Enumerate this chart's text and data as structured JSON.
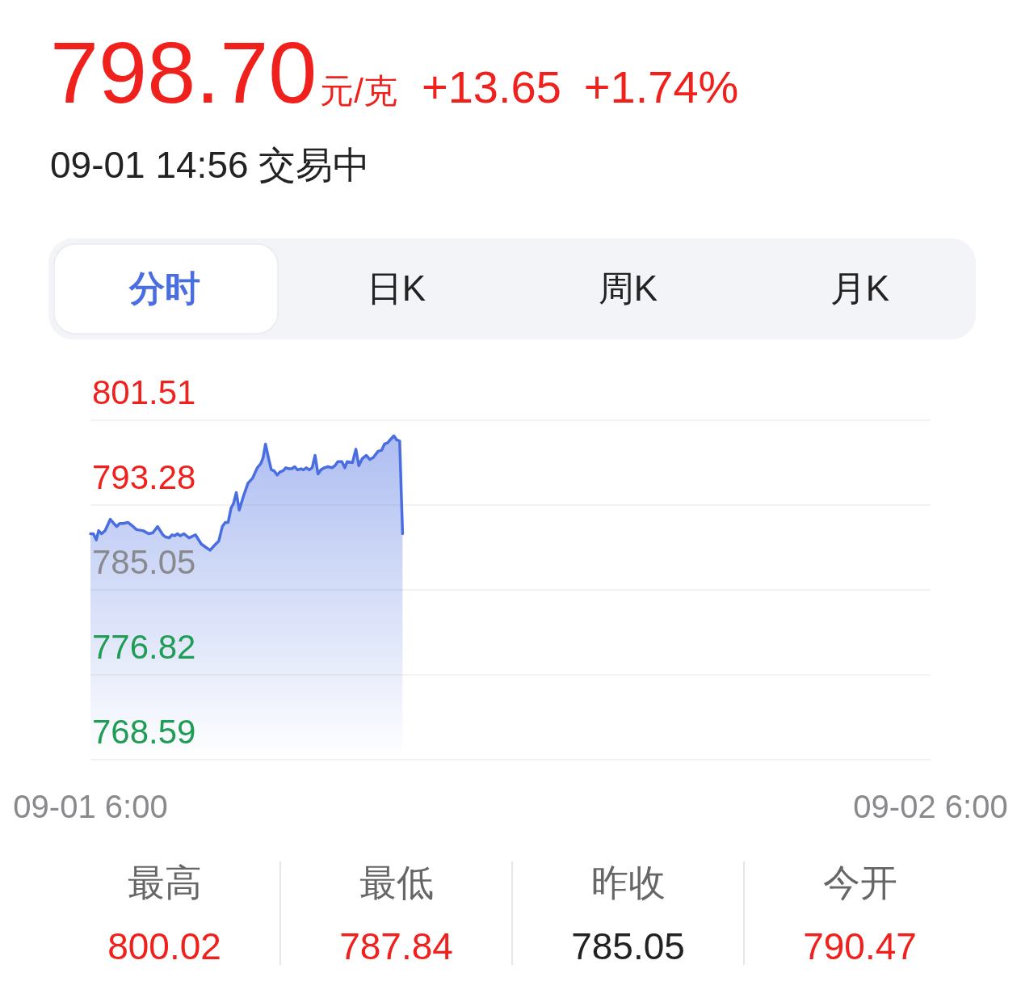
{
  "chart_data": {
    "type": "area",
    "title": "798.70",
    "subtitle": "09-01 14:56 交易中",
    "annotations": [
      "元/克",
      "+13.65",
      "+1.74%",
      "分时",
      "日K",
      "周K",
      "月K",
      "最高",
      "800.02",
      "最低",
      "787.84",
      "昨收",
      "785.05",
      "今开",
      "790.47"
    ],
    "x": [
      "--09-01T06:00",
      "--09-01T06:05",
      "--09-01T06:10",
      "--09-01T06:14",
      "--09-01T06:19",
      "--09-01T06:25",
      "--09-01T06:34",
      "--09-01T06:40",
      "--09-01T06:45",
      "--09-01T06:50",
      "--09-01T06:56",
      "--09-01T07:04",
      "--09-01T07:11",
      "--09-01T07:19",
      "--09-01T07:30",
      "--09-01T07:40",
      "--09-01T07:47",
      "--09-01T07:55",
      "--09-01T08:04",
      "--09-01T08:08",
      "--09-01T08:15",
      "--09-01T08:20",
      "--09-01T08:24",
      "--09-01T08:29",
      "--09-01T08:34",
      "--09-01T08:40",
      "--09-01T08:49",
      "--09-01T09:00",
      "--09-01T09:10",
      "--09-01T09:25",
      "--09-01T09:33",
      "--09-01T09:40",
      "--09-01T09:46",
      "--09-01T09:51",
      "--09-01T09:56",
      "--09-01T10:01",
      "--09-01T10:05",
      "--09-01T10:10",
      "--09-01T10:15",
      "--09-01T10:22",
      "--09-01T10:30",
      "--09-01T10:38",
      "--09-01T10:46",
      "--09-01T10:52",
      "--09-01T10:56",
      "--09-01T11:00",
      "--09-01T11:05",
      "--09-01T11:10",
      "--09-01T11:15",
      "--09-01T11:20",
      "--09-01T11:25",
      "--09-01T11:30",
      "--09-01T11:35",
      "--09-01T11:40",
      "--09-01T11:45",
      "--09-01T11:50",
      "--09-01T11:55",
      "--09-01T12:01",
      "--09-01T12:05",
      "--09-01T12:10",
      "--09-01T12:15",
      "--09-01T12:20",
      "--09-01T12:25",
      "--09-01T12:30",
      "--09-01T12:35",
      "--09-01T12:41",
      "--09-01T12:47",
      "--09-01T12:54",
      "--09-01T12:59",
      "--09-01T13:04",
      "--09-01T13:11",
      "--09-01T13:16",
      "--09-01T13:20",
      "--09-01T13:29",
      "--09-01T13:35",
      "--09-01T13:40",
      "--09-01T13:46",
      "--09-01T13:53",
      "--09-01T13:59",
      "--09-01T14:05",
      "--09-01T14:13",
      "--09-01T14:19",
      "--09-01T14:24",
      "--09-01T14:29",
      "--09-01T14:40",
      "--09-01T14:45",
      "--09-01T14:50",
      "--09-01T14:55"
    ],
    "series": [
      {
        "color": "#4a6ee0",
        "values": [
          790.5,
          790.5,
          789.9,
          790.8,
          790.5,
          790.8,
          791.9,
          791.5,
          791.2,
          791.5,
          791.5,
          791.6,
          791.3,
          790.9,
          790.8,
          790.5,
          790.6,
          791.2,
          790.4,
          790.2,
          790.1,
          790.4,
          790.3,
          790.5,
          790.3,
          790.5,
          790.1,
          790.4,
          789.5,
          788.9,
          789.4,
          789.8,
          791.2,
          791.6,
          791.6,
          793.0,
          793.4,
          794.5,
          792.8,
          794.1,
          795.4,
          795.9,
          796.9,
          797.3,
          797.9,
          799.2,
          797.9,
          796.7,
          796.6,
          796.2,
          796.5,
          796.6,
          796.9,
          796.8,
          796.8,
          797.0,
          796.7,
          796.8,
          796.7,
          796.9,
          796.7,
          796.9,
          798.1,
          796.3,
          796.7,
          796.9,
          797.0,
          796.9,
          797.1,
          797.5,
          797.5,
          796.9,
          797.5,
          797.4,
          798.7,
          797.1,
          797.8,
          798.1,
          797.7,
          797.9,
          798.5,
          798.6,
          799.2,
          799.3,
          800.0,
          799.6,
          799.5,
          790.5
        ]
      }
    ],
    "xlim": [
      "--09-01T06:00",
      "--09-02T06:00"
    ],
    "xticks": [
      {
        "value": "--09-01T06:00",
        "label": "09-01 6:00"
      },
      {
        "value": "--09-02T06:00",
        "label": "09-02 6:00"
      }
    ],
    "ylim": [
      768.59,
      801.51
    ],
    "yticks": [
      768.59,
      776.82,
      785.05,
      793.28,
      801.51
    ],
    "grid": "y"
  }
}
